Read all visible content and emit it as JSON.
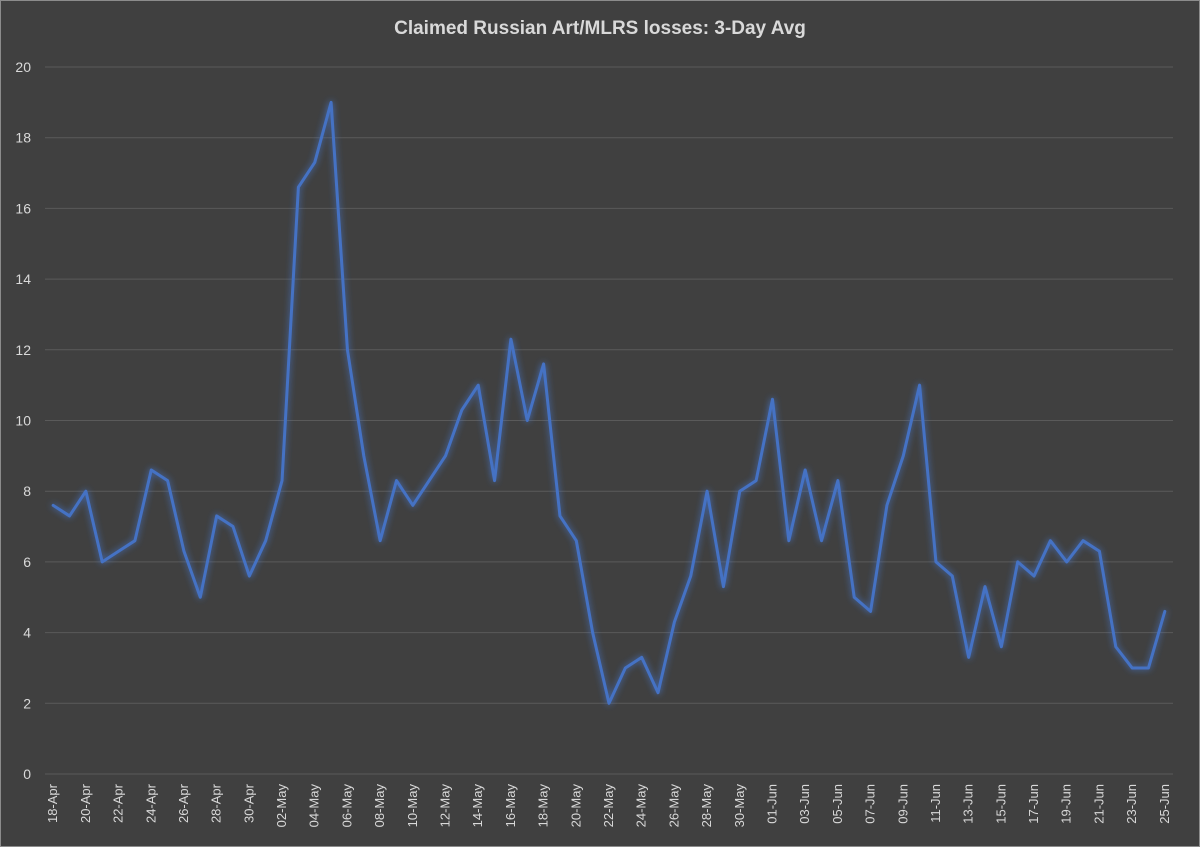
{
  "chart_data": {
    "type": "line",
    "title": "Claimed Russian Art/MLRS losses: 3-Day Avg",
    "xlabel": "",
    "ylabel": "",
    "ylim": [
      0,
      20
    ],
    "yticks": [
      0,
      2,
      4,
      6,
      8,
      10,
      12,
      14,
      16,
      18,
      20
    ],
    "grid": true,
    "legend": "none",
    "x_tick_labels": [
      "18-Apr",
      "20-Apr",
      "22-Apr",
      "24-Apr",
      "26-Apr",
      "28-Apr",
      "30-Apr",
      "02-May",
      "04-May",
      "06-May",
      "08-May",
      "10-May",
      "12-May",
      "14-May",
      "16-May",
      "18-May",
      "20-May",
      "22-May",
      "24-May",
      "26-May",
      "28-May",
      "30-May",
      "01-Jun",
      "03-Jun",
      "05-Jun",
      "07-Jun",
      "09-Jun",
      "11-Jun",
      "13-Jun",
      "15-Jun",
      "17-Jun",
      "19-Jun",
      "21-Jun",
      "23-Jun",
      "25-Jun"
    ],
    "x": [
      "18-Apr",
      "19-Apr",
      "20-Apr",
      "21-Apr",
      "22-Apr",
      "23-Apr",
      "24-Apr",
      "25-Apr",
      "26-Apr",
      "27-Apr",
      "28-Apr",
      "29-Apr",
      "30-Apr",
      "01-May",
      "02-May",
      "03-May",
      "04-May",
      "05-May",
      "06-May",
      "07-May",
      "08-May",
      "09-May",
      "10-May",
      "11-May",
      "12-May",
      "13-May",
      "14-May",
      "15-May",
      "16-May",
      "17-May",
      "18-May",
      "19-May",
      "20-May",
      "21-May",
      "22-May",
      "23-May",
      "24-May",
      "25-May",
      "26-May",
      "27-May",
      "28-May",
      "29-May",
      "30-May",
      "31-May",
      "01-Jun",
      "02-Jun",
      "03-Jun",
      "04-Jun",
      "05-Jun",
      "06-Jun",
      "07-Jun",
      "08-Jun",
      "09-Jun",
      "10-Jun",
      "11-Jun",
      "12-Jun",
      "13-Jun",
      "14-Jun",
      "15-Jun",
      "16-Jun",
      "17-Jun",
      "18-Jun",
      "19-Jun",
      "20-Jun",
      "21-Jun",
      "22-Jun",
      "23-Jun",
      "24-Jun",
      "25-Jun"
    ],
    "series": [
      {
        "name": "",
        "color": "#4472c4",
        "values": [
          7.6,
          7.3,
          8.0,
          6.0,
          6.3,
          6.6,
          8.6,
          8.3,
          6.3,
          5.0,
          7.3,
          7.0,
          5.6,
          6.6,
          8.3,
          16.6,
          17.3,
          19.0,
          12.0,
          9.0,
          6.6,
          8.3,
          7.6,
          8.3,
          9.0,
          10.3,
          11.0,
          8.3,
          12.3,
          10.0,
          11.6,
          7.3,
          6.6,
          4.0,
          2.0,
          3.0,
          3.3,
          2.3,
          4.3,
          5.6,
          8.0,
          5.3,
          8.0,
          8.3,
          10.6,
          6.6,
          8.6,
          6.6,
          8.3,
          5.0,
          4.6,
          7.6,
          9.0,
          11.0,
          6.0,
          5.6,
          3.3,
          5.3,
          3.6,
          6.0,
          5.6,
          6.6,
          6.0,
          6.6,
          6.3,
          3.6,
          3.0,
          3.0,
          4.6
        ]
      }
    ]
  }
}
